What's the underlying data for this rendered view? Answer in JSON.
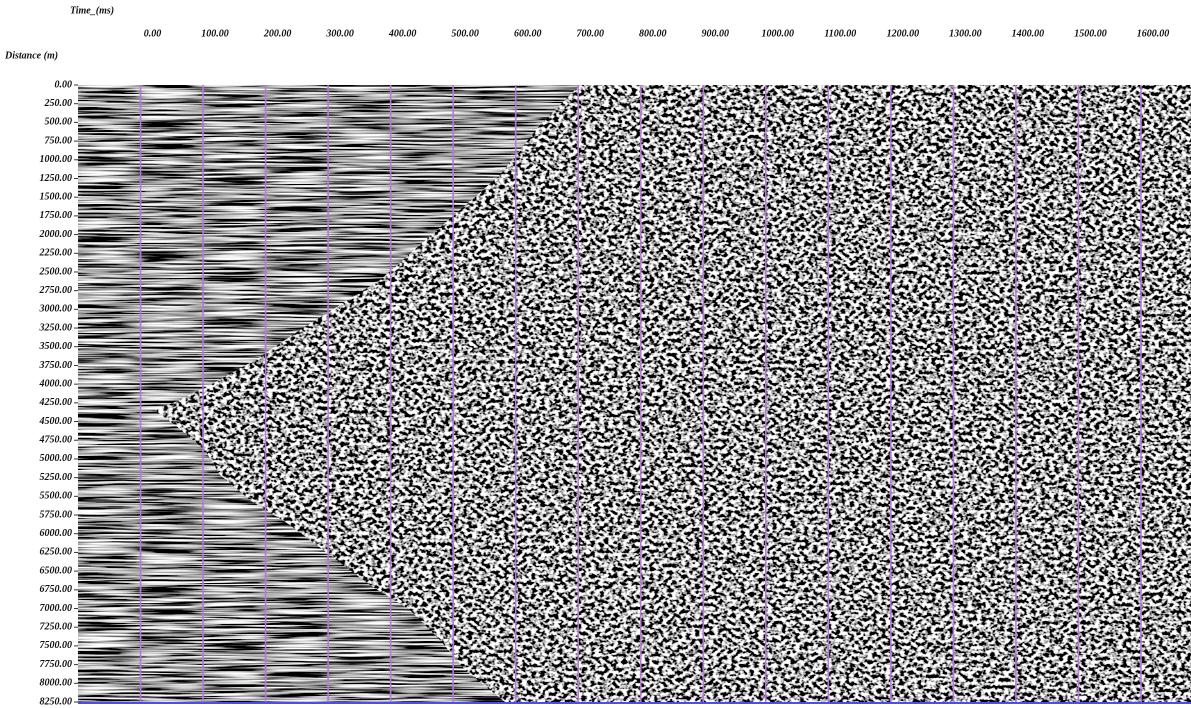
{
  "chart_data": {
    "type": "seismic",
    "x_label": "Time_(ms)",
    "y_label": "Distance (m)",
    "grid": true,
    "grid_color": "#b37ad6",
    "xlim": [
      -100,
      1680
    ],
    "ylim": [
      0,
      8250
    ],
    "xticks": [
      {
        "value": 0,
        "label": "0.00"
      },
      {
        "value": 100,
        "label": "100.00"
      },
      {
        "value": 200,
        "label": "200.00"
      },
      {
        "value": 300,
        "label": "300.00"
      },
      {
        "value": 400,
        "label": "400.00"
      },
      {
        "value": 500,
        "label": "500.00"
      },
      {
        "value": 600,
        "label": "600.00"
      },
      {
        "value": 700,
        "label": "700.00"
      },
      {
        "value": 800,
        "label": "800.00"
      },
      {
        "value": 900,
        "label": "900.00"
      },
      {
        "value": 1000,
        "label": "1000.00"
      },
      {
        "value": 1100,
        "label": "1100.00"
      },
      {
        "value": 1200,
        "label": "1200.00"
      },
      {
        "value": 1300,
        "label": "1300.00"
      },
      {
        "value": 1400,
        "label": "1400.00"
      },
      {
        "value": 1500,
        "label": "1500.00"
      },
      {
        "value": 1600,
        "label": "1600.00"
      }
    ],
    "yticks": [
      {
        "value": 0,
        "label": "0.00"
      },
      {
        "value": 250,
        "label": "250.00"
      },
      {
        "value": 500,
        "label": "500.00"
      },
      {
        "value": 750,
        "label": "750.00"
      },
      {
        "value": 1000,
        "label": "1000.00"
      },
      {
        "value": 1250,
        "label": "1250.00"
      },
      {
        "value": 1500,
        "label": "1500.00"
      },
      {
        "value": 1750,
        "label": "1750.00"
      },
      {
        "value": 2000,
        "label": "2000.00"
      },
      {
        "value": 2250,
        "label": "2250.00"
      },
      {
        "value": 2500,
        "label": "2500.00"
      },
      {
        "value": 2750,
        "label": "2750.00"
      },
      {
        "value": 3000,
        "label": "3000.00"
      },
      {
        "value": 3250,
        "label": "3250.00"
      },
      {
        "value": 3500,
        "label": "3500.00"
      },
      {
        "value": 3750,
        "label": "3750.00"
      },
      {
        "value": 4000,
        "label": "4000.00"
      },
      {
        "value": 4250,
        "label": "4250.00"
      },
      {
        "value": 4500,
        "label": "4500.00"
      },
      {
        "value": 4750,
        "label": "4750.00"
      },
      {
        "value": 5000,
        "label": "5000.00"
      },
      {
        "value": 5250,
        "label": "5250.00"
      },
      {
        "value": 5500,
        "label": "5500.00"
      },
      {
        "value": 5750,
        "label": "5750.00"
      },
      {
        "value": 6000,
        "label": "6000.00"
      },
      {
        "value": 6250,
        "label": "6250.00"
      },
      {
        "value": 6500,
        "label": "6500.00"
      },
      {
        "value": 6750,
        "label": "6750.00"
      },
      {
        "value": 7000,
        "label": "7000.00"
      },
      {
        "value": 7250,
        "label": "7250.00"
      },
      {
        "value": 7500,
        "label": "7500.00"
      },
      {
        "value": 7750,
        "label": "7750.00"
      },
      {
        "value": 8000,
        "label": "8000.00"
      },
      {
        "value": 8250,
        "label": "8250.00"
      }
    ]
  }
}
